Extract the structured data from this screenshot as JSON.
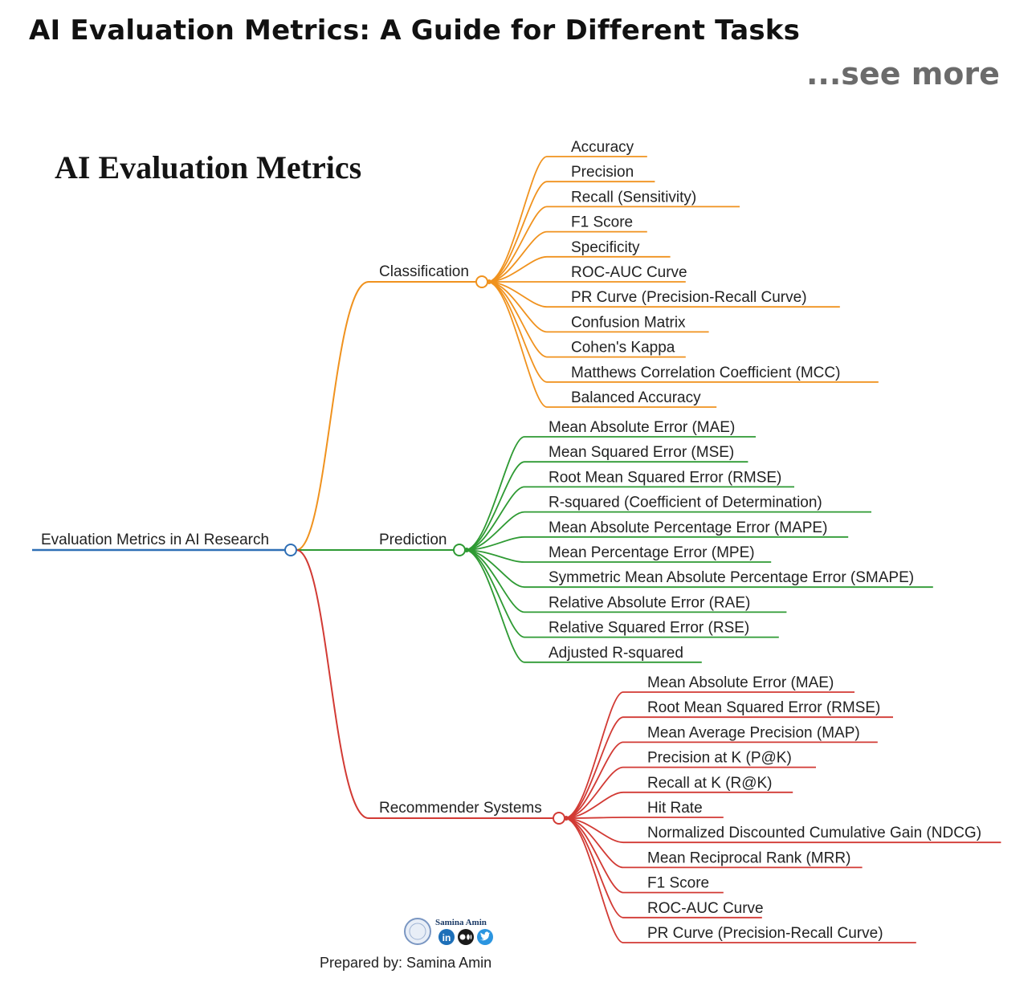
{
  "post": {
    "title": "AI Evaluation Metrics: A Guide for Different Tasks",
    "see_more": "...see more"
  },
  "diagram": {
    "heading": "AI Evaluation Metrics",
    "root": "Evaluation Metrics in AI Research",
    "branches": [
      {
        "label": "Classification",
        "color": "#f0921e",
        "leaves": [
          "Accuracy",
          "Precision",
          "Recall (Sensitivity)",
          "F1 Score",
          "Specificity",
          "ROC-AUC Curve",
          "PR Curve (Precision-Recall Curve)",
          "Confusion Matrix",
          "Cohen's Kappa",
          "Matthews Correlation Coefficient (MCC)",
          "Balanced Accuracy"
        ]
      },
      {
        "label": "Prediction",
        "color": "#2e9a33",
        "leaves": [
          "Mean Absolute Error (MAE)",
          "Mean Squared Error (MSE)",
          "Root Mean Squared Error (RMSE)",
          "R-squared (Coefficient of Determination)",
          "Mean Absolute Percentage Error (MAPE)",
          "Mean Percentage Error (MPE)",
          "Symmetric Mean Absolute Percentage Error (SMAPE)",
          "Relative Absolute Error (RAE)",
          "Relative Squared Error (RSE)",
          "Adjusted R-squared"
        ]
      },
      {
        "label": "Recommender Systems",
        "color": "#d23a34",
        "leaves": [
          "Mean Absolute Error (MAE)",
          "Root Mean Squared Error (RMSE)",
          "Mean Average Precision (MAP)",
          "Precision at K (P@K)",
          "Recall at K (R@K)",
          "Hit Rate",
          "Normalized Discounted Cumulative Gain (NDCG)",
          "Mean Reciprocal Rank (MRR)",
          "F1 Score",
          "ROC-AUC Curve",
          "PR Curve (Precision-Recall Curve)"
        ]
      }
    ],
    "root_color": "#2f6fb5",
    "credit": {
      "logo_name": "Samina Amin",
      "prepared_by": "Prepared by: Samina Amin",
      "icons": [
        "linkedin-icon",
        "medium-icon",
        "twitter-icon"
      ]
    }
  }
}
